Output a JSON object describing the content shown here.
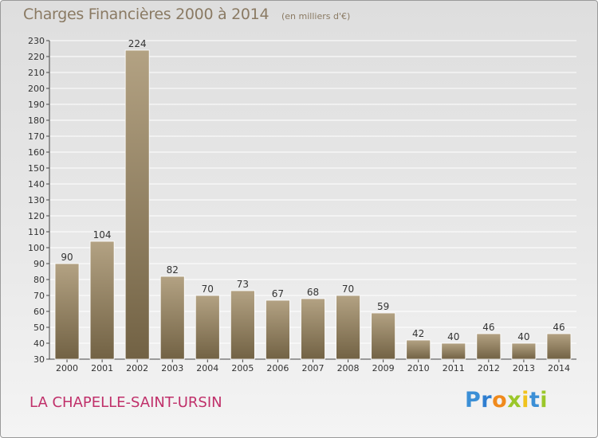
{
  "title": "Charges Financières 2000 à 2014",
  "subtitle": "(en milliers d'€)",
  "location": "LA CHAPELLE-SAINT-URSIN",
  "logo": {
    "text": "Proxiti",
    "letters": [
      "P",
      "r",
      "o",
      "x",
      "i",
      "t",
      "i"
    ],
    "colors": [
      "#3b8fd6",
      "#2f7ed0",
      "#f08a1c",
      "#9bc72a",
      "#f0c31c",
      "#3b8fd6",
      "#9bc72a"
    ]
  },
  "colors": {
    "bar_light": "#b3a283",
    "bar_dark": "#726244",
    "text": "#8a7a63",
    "location": "#c0306a",
    "grid": "#ffffff"
  },
  "chart_data": {
    "type": "bar",
    "categories": [
      "2000",
      "2001",
      "2002",
      "2003",
      "2004",
      "2005",
      "2006",
      "2007",
      "2008",
      "2009",
      "2010",
      "2011",
      "2012",
      "2013",
      "2014"
    ],
    "values": [
      90,
      104,
      224,
      82,
      70,
      73,
      67,
      68,
      70,
      59,
      42,
      40,
      46,
      40,
      46
    ],
    "ylim": [
      30,
      230
    ],
    "yticks": [
      30,
      40,
      50,
      60,
      70,
      80,
      90,
      100,
      110,
      120,
      130,
      140,
      150,
      160,
      170,
      180,
      190,
      200,
      210,
      220,
      230
    ],
    "grid": true,
    "xlabel": "",
    "ylabel": ""
  }
}
